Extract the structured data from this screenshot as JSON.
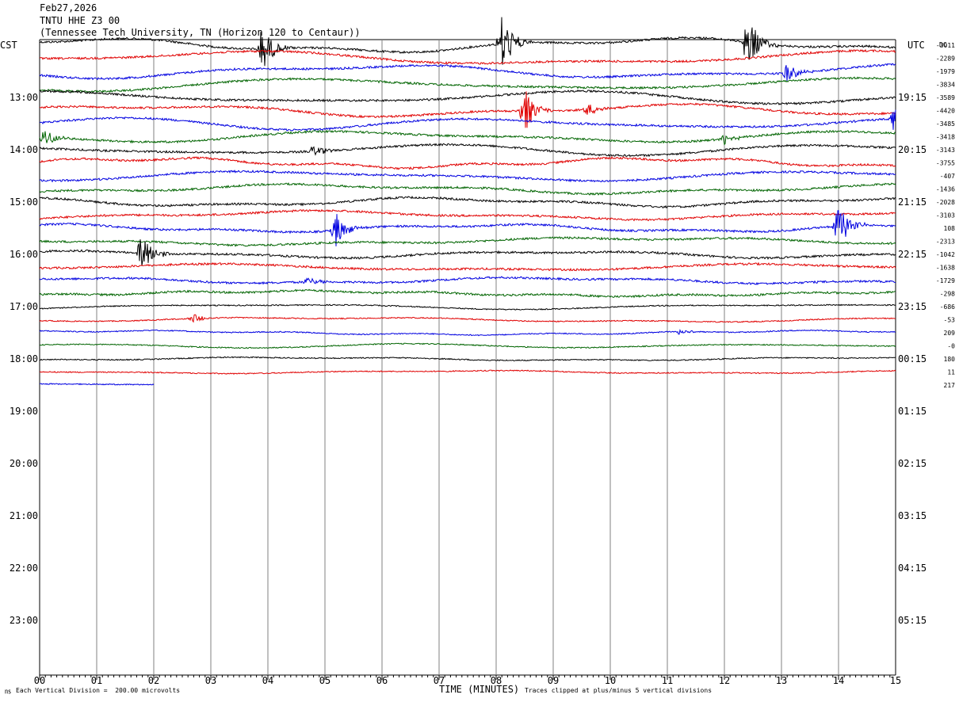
{
  "header": {
    "date": "Feb27,2026",
    "station": "TNTU HHE Z3 00",
    "location": "(Tennessee Tech University, TN (Horizon 120 to Centaur))"
  },
  "labels": {
    "left_tz": "CST",
    "right_tz": "UTC",
    "dc": "DC"
  },
  "footer": {
    "scale": "Each Vertical Division =  200.00 microvolts",
    "xlabel": "TIME (MINUTES)",
    "clip": "Traces clipped at plus/minus 5 vertical divisions",
    "mark": "㎱"
  },
  "colors": [
    "#000000",
    "#e00000",
    "#0000e0",
    "#006400"
  ],
  "chart_data": {
    "type": "line",
    "title": "TNTU HHE Z3 00",
    "xlabel": "TIME (MINUTES)",
    "xlim": [
      0,
      15
    ],
    "x_ticks": [
      "00",
      "01",
      "02",
      "03",
      "04",
      "05",
      "06",
      "07",
      "08",
      "09",
      "10",
      "11",
      "12",
      "13",
      "14",
      "15"
    ],
    "left_hour_labels": [
      "13:00",
      "14:00",
      "15:00",
      "16:00",
      "17:00",
      "18:00",
      "19:00",
      "20:00",
      "21:00",
      "22:00",
      "23:00"
    ],
    "right_hour_labels": [
      "19:15",
      "20:15",
      "21:15",
      "22:15",
      "23:15",
      "00:15",
      "01:15",
      "02:15",
      "03:15",
      "04:15",
      "05:15"
    ],
    "trace_count": 27,
    "trace_dc_offsets": [
      "-3011",
      "-2289",
      "-1979",
      "-3834",
      "-3589",
      "-4420",
      "-3485",
      "-3418",
      "-3143",
      "-3755",
      "-407",
      "-1436",
      "-2028",
      "-3103",
      "108",
      "-2313",
      "-1042",
      "-1638",
      "-1729",
      "-298",
      "-686",
      "-53",
      "209",
      "-0",
      "180",
      "11",
      "217"
    ],
    "last_trace_end_minute": 2.0,
    "events": [
      {
        "trace": 0,
        "minute": 3.9,
        "amp": 30
      },
      {
        "trace": 0,
        "minute": 8.1,
        "amp": 40
      },
      {
        "trace": 0,
        "minute": 12.4,
        "amp": 40
      },
      {
        "trace": 2,
        "minute": 13.1,
        "amp": 12
      },
      {
        "trace": 5,
        "minute": 8.5,
        "amp": 30
      },
      {
        "trace": 5,
        "minute": 9.6,
        "amp": 8
      },
      {
        "trace": 6,
        "minute": 15.0,
        "amp": 22
      },
      {
        "trace": 7,
        "minute": 0.1,
        "amp": 12
      },
      {
        "trace": 7,
        "minute": 12.0,
        "amp": 8
      },
      {
        "trace": 8,
        "minute": 4.8,
        "amp": 8
      },
      {
        "trace": 14,
        "minute": 5.2,
        "amp": 22
      },
      {
        "trace": 14,
        "minute": 14.0,
        "amp": 28
      },
      {
        "trace": 16,
        "minute": 1.8,
        "amp": 30
      },
      {
        "trace": 18,
        "minute": 4.7,
        "amp": 6
      },
      {
        "trace": 21,
        "minute": 2.7,
        "amp": 6
      },
      {
        "trace": 22,
        "minute": 11.2,
        "amp": 4
      }
    ],
    "grid": true
  }
}
